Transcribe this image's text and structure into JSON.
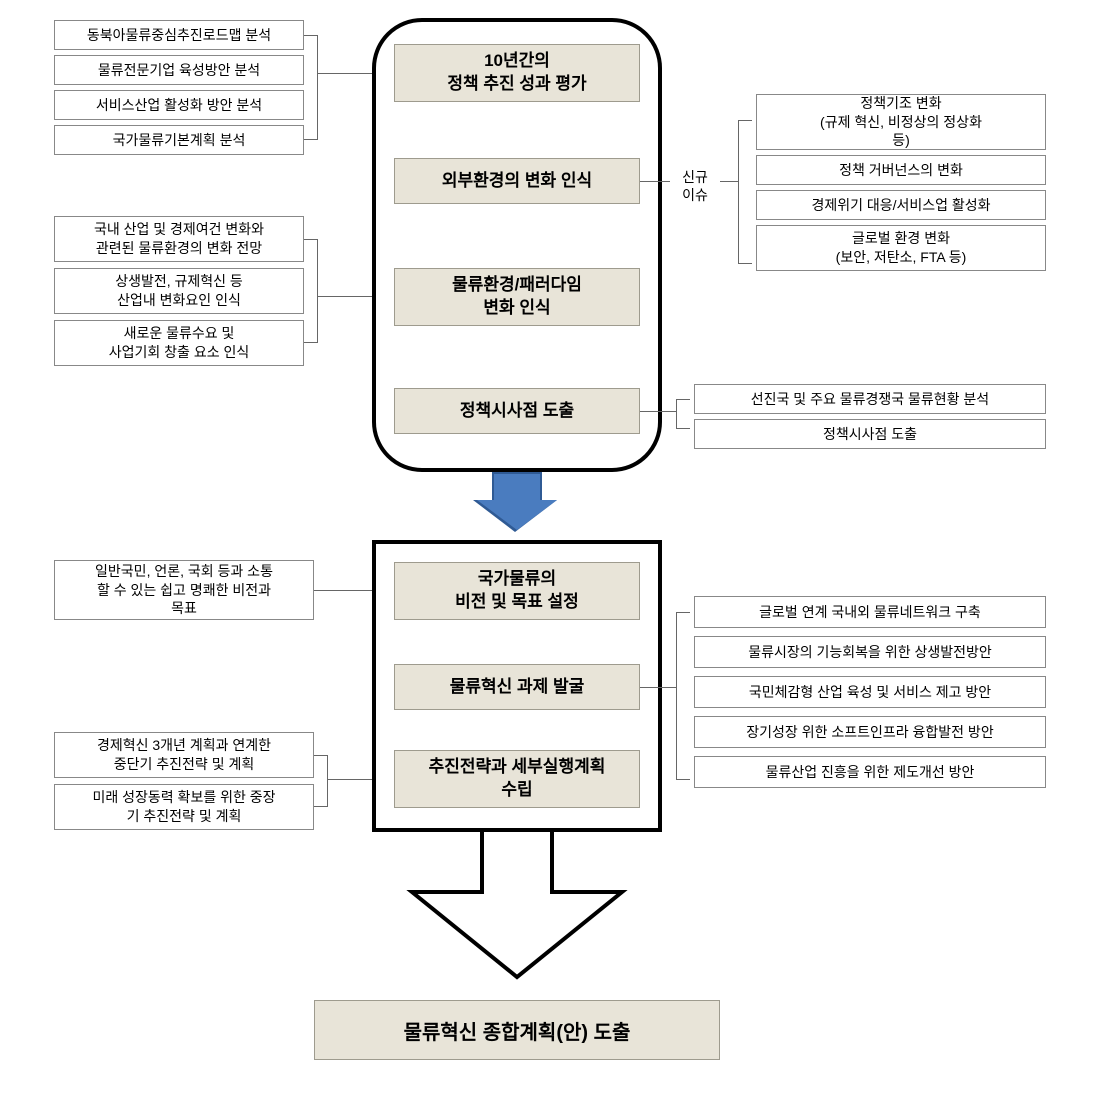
{
  "diagram": {
    "type": "flowchart",
    "background_color": "#ffffff",
    "main_box_bg": "#e8e4d8",
    "main_box_border": "#9e9b8e",
    "side_box_bg": "#ffffff",
    "side_box_border": "#888888",
    "container_border": "#000000",
    "arrow_fill": "#4a7cbf",
    "arrow_border": "#2f5a94",
    "bracket_color": "#666666",
    "font_main_size": 17,
    "font_side_size": 14,
    "font_final_size": 20
  },
  "upper": {
    "steps": [
      "10년간의\n정책 추진 성과 평가",
      "외부환경의 변화 인식",
      "물류환경/패러다임\n변화 인식",
      "정책시사점 도출"
    ],
    "left_group_1": [
      "동북아물류중심추진로드맵 분석",
      "물류전문기업 육성방안 분석",
      "서비스산업 활성화 방안 분석",
      "국가물류기본계획 분석"
    ],
    "left_group_2": [
      "국내 산업 및 경제여건 변화와\n관련된 물류환경의 변화 전망",
      "상생발전, 규제혁신 등\n산업내 변화요인 인식",
      "새로운 물류수요 및\n사업기회 창출 요소 인식"
    ],
    "right_label": "신규\n이슈",
    "right_group_1": [
      "정책기조 변화\n(규제 혁신, 비정상의 정상화\n등)",
      "정책 거버넌스의 변화",
      "경제위기 대응/서비스업 활성화",
      "글로벌 환경 변화\n(보안, 저탄소, FTA 등)"
    ],
    "right_group_2": [
      "선진국 및 주요 물류경쟁국 물류현황 분석",
      "정책시사점 도출"
    ]
  },
  "lower": {
    "steps": [
      "국가물류의\n비전 및 목표 설정",
      "물류혁신 과제 발굴",
      "추진전략과 세부실행계획\n수립"
    ],
    "left_single_1": "일반국민, 언론, 국회 등과 소통\n할 수 있는 쉽고 명쾌한 비전과\n목표",
    "left_group_2": [
      "경제혁신 3개년 계획과 연계한\n중단기 추진전략 및 계획",
      "미래 성장동력 확보를 위한 중장\n기 추진전략 및 계획"
    ],
    "right_group": [
      "글로벌 연계 국내외 물류네트워크 구축",
      "물류시장의 기능회복을 위한 상생발전방안",
      "국민체감형 산업 육성 및 서비스 제고 방안",
      "장기성장 위한 소프트인프라 융합발전 방안",
      "물류산업 진흥을 위한 제도개선 방안"
    ]
  },
  "final": "물류혁신 종합계획(안) 도출"
}
